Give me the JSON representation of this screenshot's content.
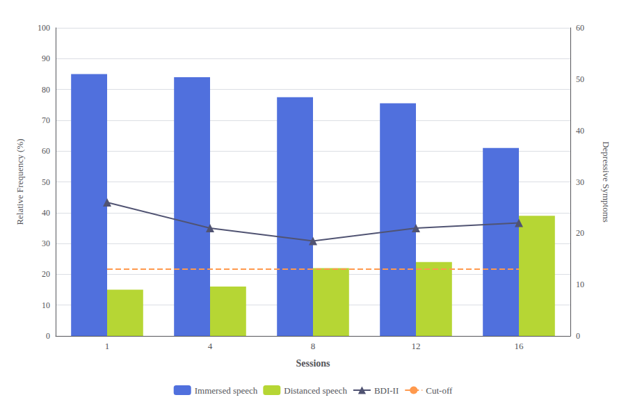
{
  "chart_data": {
    "type": "bar",
    "categories": [
      "1",
      "4",
      "8",
      "12",
      "16"
    ],
    "xlabel": "Sessions",
    "ylabel": "Relative Frequency (%)",
    "y2label": "Depressive Symptoms",
    "ylim": [
      0,
      100
    ],
    "yticks": [
      0,
      10,
      20,
      30,
      40,
      50,
      60,
      70,
      80,
      90,
      100
    ],
    "y2lim": [
      0,
      60
    ],
    "y2ticks": [
      0,
      10,
      20,
      30,
      40,
      50,
      60
    ],
    "grid": true,
    "legend": "bottom",
    "series": [
      {
        "name": "Immersed speech",
        "type": "bar",
        "values": [
          85,
          84,
          77.5,
          75.5,
          61
        ]
      },
      {
        "name": "Distanced speech",
        "type": "bar",
        "values": [
          15,
          16,
          22,
          24,
          39
        ]
      },
      {
        "name": "BDI-II",
        "type": "line",
        "axis": "y2",
        "marker": "triangle",
        "line_style": "solid",
        "values": [
          26,
          21,
          18.5,
          21,
          22
        ]
      },
      {
        "name": "Cut-off",
        "type": "line",
        "axis": "y2",
        "marker": "none",
        "line_style": "dashed",
        "values": [
          13,
          13,
          13,
          13,
          13
        ]
      }
    ]
  }
}
